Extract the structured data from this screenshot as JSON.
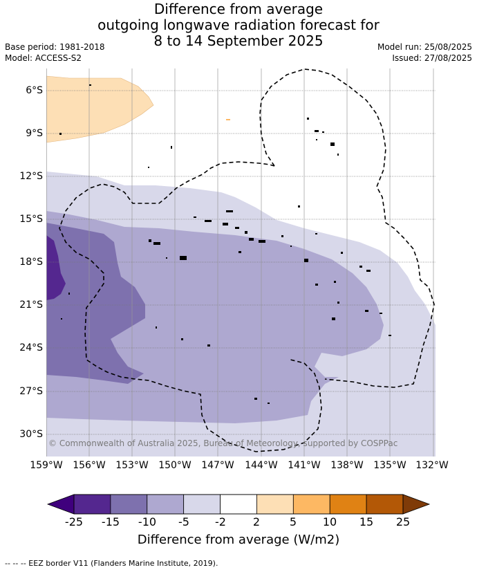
{
  "title": {
    "line1": "Difference from average",
    "line2": "outgoing longwave radiation forecast for",
    "line3": "8 to 14 September 2025"
  },
  "meta_left": {
    "base_period": "Base period: 1981-2018",
    "model": "Model: ACCESS-S2"
  },
  "meta_right": {
    "model_run": "Model run: 25/08/2025",
    "issued": "Issued: 27/08/2025"
  },
  "copyright": "© Commonwealth of Australia 2025, Bureau of Meteorology, supported by COSPPac",
  "lat_labels": [
    "6°S",
    "9°S",
    "12°S",
    "15°S",
    "18°S",
    "21°S",
    "24°S",
    "27°S",
    "30°S"
  ],
  "lon_labels": [
    "159°W",
    "156°W",
    "153°W",
    "150°W",
    "147°W",
    "144°W",
    "141°W",
    "138°W",
    "135°W",
    "132°W"
  ],
  "colorbar": {
    "label": "Difference from average (W/m2)",
    "ticks": [
      "-25",
      "-15",
      "-10",
      "-5",
      "-2",
      "2",
      "5",
      "10",
      "15",
      "25"
    ],
    "colors": [
      "#54278f",
      "#7e71ae",
      "#aea8d0",
      "#d8d8ea",
      "#ffffff",
      "#fddfb5",
      "#fdb863",
      "#e08214",
      "#b35806"
    ],
    "under_color": "#3f007d",
    "over_color": "#7f3b08"
  },
  "footnote": "-- -- -- EEZ border V11 (Flanders Marine Institute, 2019)."
}
